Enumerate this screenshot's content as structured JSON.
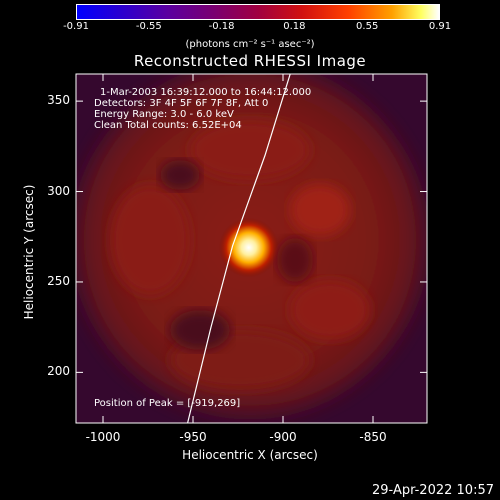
{
  "colorbar": {
    "ticks": [
      "-0.91",
      "-0.55",
      "-0.18",
      "0.18",
      "0.55",
      "0.91"
    ],
    "unit_label": "(photons cm⁻² s⁻¹ asec⁻²)"
  },
  "image": {
    "title": "Reconstructed RHESSI Image",
    "info_lines": [
      "1-Mar-2003 16:39:12.000 to 16:44:12.000",
      "Detectors: 3F 4F 5F 6F 7F 8F, Att 0",
      "Energy Range: 3.0 - 6.0 keV",
      "Clean    Total counts: 6.52E+04"
    ],
    "peak_label": "Position of Peak = [-919,269]"
  },
  "axes": {
    "xlabel": "Heliocentric X (arcsec)",
    "ylabel": "Heliocentric Y (arcsec)",
    "xticks": [
      "-1000",
      "-950",
      "-900",
      "-850"
    ],
    "yticks": [
      "200",
      "250",
      "300",
      "350"
    ]
  },
  "chart_data": {
    "type": "heatmap",
    "title": "Reconstructed RHESSI Image",
    "xlabel": "Heliocentric X (arcsec)",
    "ylabel": "Heliocentric Y (arcsec)",
    "xlim": [
      -1015,
      -820
    ],
    "ylim": [
      172,
      365
    ],
    "xticks": [
      -1000,
      -950,
      -900,
      -850
    ],
    "yticks": [
      200,
      250,
      300,
      350
    ],
    "colorbar_range": [
      -0.91,
      0.91
    ],
    "colormap": "hot (blue-purple-red-yellow-white)",
    "peak": {
      "x": -919,
      "y": 269
    },
    "limb_curve": [
      [
        -953,
        172
      ],
      [
        -940,
        225
      ],
      [
        -928,
        270
      ],
      [
        -910,
        320
      ],
      [
        -896,
        365
      ]
    ]
  },
  "footer": {
    "date": "29-Apr-2022 10:57"
  }
}
